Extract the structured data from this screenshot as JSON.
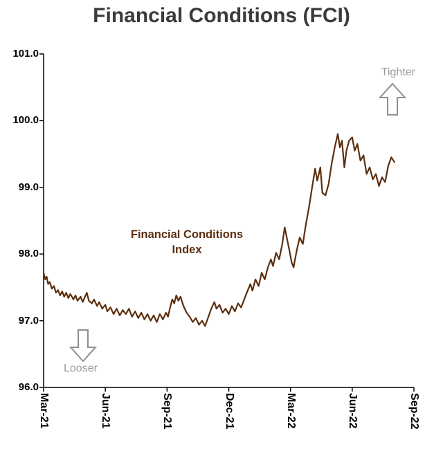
{
  "title": "Financial Conditions (FCI)",
  "annotations": {
    "tighter": "Tighter",
    "looser": "Looser",
    "series_label_line1": "Financial Conditions",
    "series_label_line2": "Index"
  },
  "colors": {
    "line": "#5C2E0E",
    "title": "#3d3a3a",
    "annotation_gray": "#9b9b9b",
    "arrow_gray": "#8f8f8f",
    "axis": "#000000"
  },
  "chart_data": {
    "type": "line",
    "title": "Financial Conditions (FCI)",
    "xlabel": "",
    "ylabel": "",
    "xlim": [
      0,
      18
    ],
    "ylim": [
      96.0,
      101.0
    ],
    "grid": false,
    "legend_position": "none",
    "x_tick_labels": [
      "Mar-21",
      "Jun-21",
      "Sep-21",
      "Dec-21",
      "Mar-22",
      "Jun-22",
      "Sep-22"
    ],
    "x_tick_positions": [
      0,
      3,
      6,
      9,
      12,
      15,
      18
    ],
    "y_ticks": [
      96.0,
      97.0,
      98.0,
      99.0,
      100.0,
      101.0
    ],
    "y_tick_labels": [
      "96.0",
      "97.0",
      "98.0",
      "99.0",
      "100.0",
      "101.0"
    ],
    "series": [
      {
        "name": "Financial Conditions Index",
        "color": "#5C2E0E",
        "points": [
          [
            0,
            97.72
          ],
          [
            0.08,
            97.62
          ],
          [
            0.15,
            97.66
          ],
          [
            0.22,
            97.55
          ],
          [
            0.3,
            97.58
          ],
          [
            0.4,
            97.48
          ],
          [
            0.5,
            97.52
          ],
          [
            0.6,
            97.42
          ],
          [
            0.7,
            97.46
          ],
          [
            0.8,
            97.38
          ],
          [
            0.9,
            97.44
          ],
          [
            1,
            97.36
          ],
          [
            1.1,
            97.42
          ],
          [
            1.2,
            97.34
          ],
          [
            1.3,
            97.4
          ],
          [
            1.45,
            97.32
          ],
          [
            1.55,
            97.38
          ],
          [
            1.65,
            97.3
          ],
          [
            1.8,
            97.36
          ],
          [
            1.9,
            97.28
          ],
          [
            2,
            97.35
          ],
          [
            2.1,
            97.42
          ],
          [
            2.2,
            97.3
          ],
          [
            2.35,
            97.26
          ],
          [
            2.45,
            97.32
          ],
          [
            2.6,
            97.22
          ],
          [
            2.7,
            97.28
          ],
          [
            2.85,
            97.18
          ],
          [
            3,
            97.24
          ],
          [
            3.1,
            97.14
          ],
          [
            3.25,
            97.2
          ],
          [
            3.4,
            97.1
          ],
          [
            3.55,
            97.18
          ],
          [
            3.7,
            97.08
          ],
          [
            3.85,
            97.16
          ],
          [
            4,
            97.1
          ],
          [
            4.15,
            97.18
          ],
          [
            4.3,
            97.06
          ],
          [
            4.45,
            97.14
          ],
          [
            4.6,
            97.04
          ],
          [
            4.75,
            97.12
          ],
          [
            4.9,
            97.02
          ],
          [
            5.05,
            97.1
          ],
          [
            5.2,
            97
          ],
          [
            5.35,
            97.08
          ],
          [
            5.5,
            96.98
          ],
          [
            5.65,
            97.1
          ],
          [
            5.8,
            97.02
          ],
          [
            5.95,
            97.12
          ],
          [
            6.05,
            97.06
          ],
          [
            6.15,
            97.2
          ],
          [
            6.25,
            97.32
          ],
          [
            6.35,
            97.26
          ],
          [
            6.45,
            97.38
          ],
          [
            6.55,
            97.3
          ],
          [
            6.65,
            97.36
          ],
          [
            6.8,
            97.22
          ],
          [
            6.95,
            97.12
          ],
          [
            7.1,
            97.06
          ],
          [
            7.25,
            96.98
          ],
          [
            7.4,
            97.04
          ],
          [
            7.55,
            96.94
          ],
          [
            7.7,
            97
          ],
          [
            7.85,
            96.92
          ],
          [
            8,
            97.05
          ],
          [
            8.15,
            97.18
          ],
          [
            8.3,
            97.28
          ],
          [
            8.4,
            97.18
          ],
          [
            8.55,
            97.24
          ],
          [
            8.7,
            97.12
          ],
          [
            8.85,
            97.18
          ],
          [
            9,
            97.1
          ],
          [
            9.15,
            97.22
          ],
          [
            9.3,
            97.14
          ],
          [
            9.45,
            97.26
          ],
          [
            9.6,
            97.2
          ],
          [
            9.75,
            97.32
          ],
          [
            9.9,
            97.44
          ],
          [
            10.05,
            97.55
          ],
          [
            10.15,
            97.45
          ],
          [
            10.3,
            97.62
          ],
          [
            10.45,
            97.52
          ],
          [
            10.6,
            97.72
          ],
          [
            10.75,
            97.62
          ],
          [
            10.9,
            97.8
          ],
          [
            11.05,
            97.92
          ],
          [
            11.15,
            97.82
          ],
          [
            11.3,
            98.02
          ],
          [
            11.45,
            97.92
          ],
          [
            11.6,
            98.15
          ],
          [
            11.72,
            98.4
          ],
          [
            11.85,
            98.2
          ],
          [
            11.95,
            98.05
          ],
          [
            12.05,
            97.88
          ],
          [
            12.15,
            97.8
          ],
          [
            12.3,
            98.05
          ],
          [
            12.45,
            98.25
          ],
          [
            12.6,
            98.15
          ],
          [
            12.75,
            98.45
          ],
          [
            12.9,
            98.7
          ],
          [
            13.05,
            99
          ],
          [
            13.2,
            99.28
          ],
          [
            13.3,
            99.1
          ],
          [
            13.45,
            99.3
          ],
          [
            13.55,
            98.92
          ],
          [
            13.7,
            98.88
          ],
          [
            13.85,
            99.05
          ],
          [
            14,
            99.35
          ],
          [
            14.15,
            99.6
          ],
          [
            14.3,
            99.8
          ],
          [
            14.4,
            99.6
          ],
          [
            14.5,
            99.7
          ],
          [
            14.62,
            99.3
          ],
          [
            14.72,
            99.55
          ],
          [
            14.85,
            99.7
          ],
          [
            15,
            99.75
          ],
          [
            15.12,
            99.55
          ],
          [
            15.25,
            99.65
          ],
          [
            15.4,
            99.4
          ],
          [
            15.55,
            99.48
          ],
          [
            15.7,
            99.2
          ],
          [
            15.85,
            99.3
          ],
          [
            16,
            99.12
          ],
          [
            16.15,
            99.2
          ],
          [
            16.3,
            99.02
          ],
          [
            16.45,
            99.15
          ],
          [
            16.6,
            99.08
          ],
          [
            16.75,
            99.32
          ],
          [
            16.9,
            99.45
          ],
          [
            17.05,
            99.38
          ]
        ]
      }
    ]
  }
}
